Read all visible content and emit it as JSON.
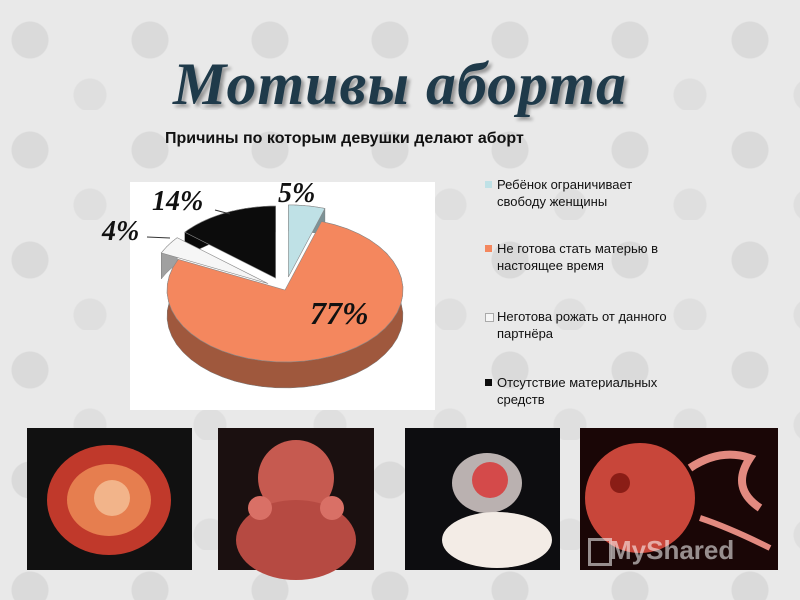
{
  "title": "Мотивы аборта",
  "subtitle": "Причины по которым девушки делают аборт",
  "chart_data": {
    "type": "pie",
    "categories": [
      "Ребёнок ограничивает свободу женщины",
      "Не готова стать матерью в настоящее время",
      "Неготова рожать от данного партнёра",
      "Отсутствие материальных средств"
    ],
    "values": [
      5,
      77,
      4,
      14
    ],
    "labels": [
      "5%",
      "77%",
      "4%",
      "14%"
    ],
    "colors": [
      "#bfe1e6",
      "#f4875e",
      "#f6f6f6",
      "#0c0c0c"
    ],
    "legend_position": "right"
  },
  "watermark": "MyShared"
}
